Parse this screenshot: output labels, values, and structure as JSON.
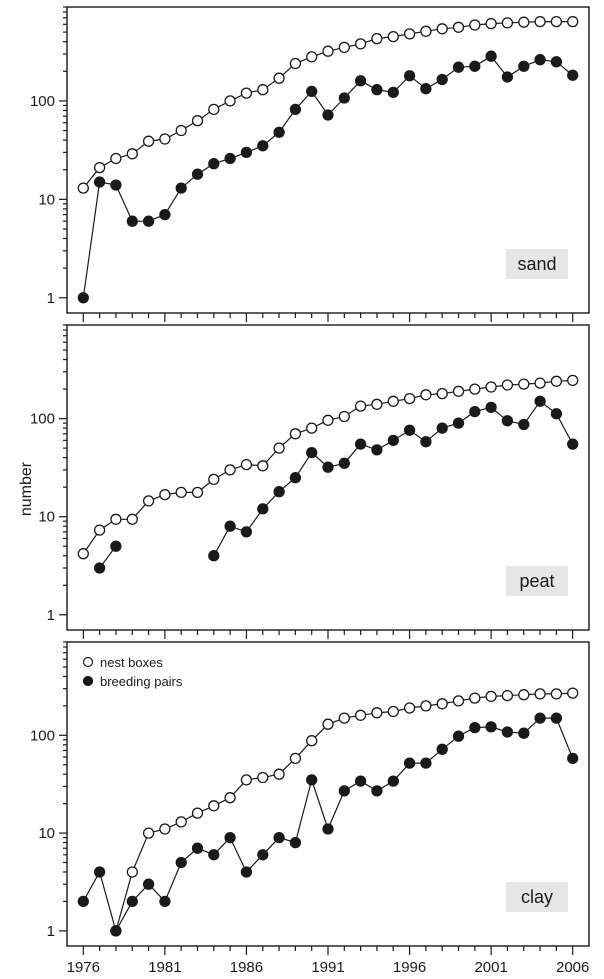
{
  "chart_data": {
    "type": "line",
    "ylabel": "number",
    "yscale": "log",
    "ylim": [
      0.7,
      900
    ],
    "y_ticks": [
      1,
      10,
      100
    ],
    "x_ticks": [
      1976,
      1981,
      1986,
      1991,
      1996,
      2001,
      2006
    ],
    "x_range": [
      1975,
      2007
    ],
    "legend": {
      "placement": "top-left",
      "panel": "clay",
      "entries": [
        "nest boxes",
        "breeding pairs"
      ]
    },
    "series_styles": {
      "nest boxes": "open-circle",
      "breeding pairs": "filled-circle"
    },
    "panels": [
      {
        "label": "sand",
        "series": [
          {
            "name": "nest boxes",
            "x": [
              1976,
              1977,
              1978,
              1979,
              1980,
              1981,
              1982,
              1983,
              1984,
              1985,
              1986,
              1987,
              1988,
              1989,
              1990,
              1991,
              1992,
              1993,
              1994,
              1995,
              1996,
              1997,
              1998,
              1999,
              2000,
              2001,
              2002,
              2003,
              2004,
              2005,
              2006
            ],
            "values": [
              13,
              21,
              26,
              29,
              39,
              41,
              50,
              63,
              82,
              100,
              120,
              130,
              170,
              240,
              280,
              320,
              350,
              380,
              430,
              450,
              480,
              510,
              540,
              560,
              590,
              610,
              620,
              630,
              640,
              640,
              640
            ]
          },
          {
            "name": "breeding pairs",
            "x": [
              1976,
              1977,
              1978,
              1979,
              1980,
              1981,
              1982,
              1983,
              1984,
              1985,
              1986,
              1987,
              1988,
              1989,
              1990,
              1991,
              1992,
              1993,
              1994,
              1995,
              1996,
              1997,
              1998,
              1999,
              2000,
              2001,
              2002,
              2003,
              2004,
              2005,
              2006
            ],
            "values": [
              1,
              15,
              14,
              6,
              6,
              7,
              13,
              18,
              23,
              26,
              30,
              35,
              48,
              82,
              125,
              72,
              107,
              160,
              130,
              122,
              180,
              133,
              165,
              220,
              225,
              285,
              175,
              225,
              262,
              250,
              182
            ]
          }
        ]
      },
      {
        "label": "peat",
        "series": [
          {
            "name": "nest boxes",
            "x": [
              1976,
              1977,
              1978,
              1979,
              1980,
              1981,
              1982,
              1983,
              1984,
              1985,
              1986,
              1987,
              1988,
              1989,
              1990,
              1991,
              1992,
              1993,
              1994,
              1995,
              1996,
              1997,
              1998,
              1999,
              2000,
              2001,
              2002,
              2003,
              2004,
              2005,
              2006
            ],
            "values": [
              4.2,
              7.3,
              9.4,
              9.4,
              14.5,
              16.8,
              17.7,
              17.7,
              24,
              30,
              34,
              33,
              50,
              70,
              80,
              96,
              105,
              134,
              140,
              150,
              160,
              175,
              180,
              190,
              200,
              210,
              220,
              225,
              230,
              240,
              245
            ]
          },
          {
            "name": "breeding pairs",
            "x": [
              1977,
              1978,
              null,
              1984,
              1985,
              1986,
              1987,
              1988,
              1989,
              1990,
              1991,
              1992,
              1993,
              1994,
              1995,
              1996,
              1997,
              1998,
              1999,
              2000,
              2001,
              2002,
              2003,
              2004,
              2005,
              2006
            ],
            "values": [
              3,
              5,
              null,
              4,
              8,
              7,
              12,
              18,
              25,
              45,
              32,
              35,
              55,
              48,
              60,
              76,
              58,
              80,
              90,
              118,
              130,
              95,
              87,
              150,
              112,
              55
            ]
          }
        ]
      },
      {
        "label": "clay",
        "series": [
          {
            "name": "nest boxes",
            "x": [
              1978,
              1979,
              1980,
              1981,
              1982,
              1983,
              1984,
              1985,
              1986,
              1987,
              1988,
              1989,
              1990,
              1991,
              1992,
              1993,
              1994,
              1995,
              1996,
              1997,
              1998,
              1999,
              2000,
              2001,
              2002,
              2003,
              2004,
              2005,
              2006
            ],
            "values": [
              1,
              4,
              10,
              11,
              13,
              16,
              19,
              23,
              35,
              37,
              40,
              58,
              88,
              130,
              150,
              160,
              170,
              175,
              190,
              200,
              210,
              225,
              240,
              250,
              255,
              260,
              265,
              265,
              270
            ]
          },
          {
            "name": "breeding pairs",
            "x": [
              1976,
              1977,
              1978,
              1979,
              1980,
              1981,
              1982,
              1983,
              1984,
              1985,
              1986,
              1987,
              1988,
              1989,
              1990,
              1991,
              1992,
              1993,
              1994,
              1995,
              1996,
              1997,
              1998,
              1999,
              2000,
              2001,
              2002,
              2003,
              2004,
              2005,
              2006
            ],
            "values": [
              2,
              4,
              1,
              2,
              3,
              2,
              5,
              7,
              6,
              9,
              4,
              6,
              9,
              8,
              35,
              11,
              27,
              34,
              27,
              34,
              52,
              52,
              72,
              98,
              120,
              122,
              108,
              105,
              150,
              150,
              58
            ]
          }
        ]
      }
    ]
  }
}
